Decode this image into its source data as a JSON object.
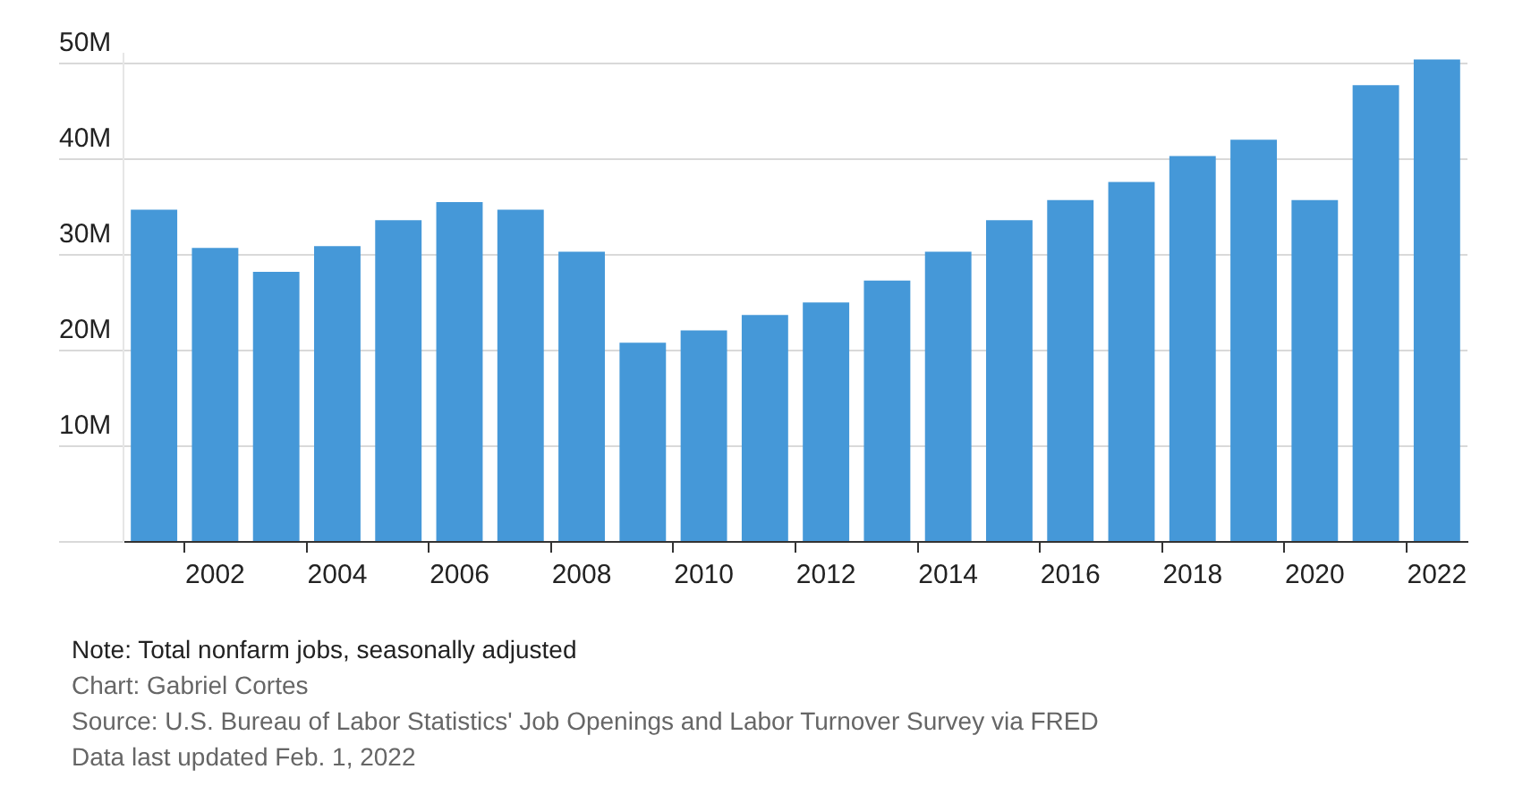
{
  "chart_data": {
    "type": "bar",
    "categories": [
      null,
      "2002",
      null,
      "2004",
      null,
      "2006",
      null,
      "2008",
      null,
      "2010",
      null,
      "2012",
      null,
      "2014",
      null,
      "2016",
      null,
      "2018",
      null,
      "2020",
      null,
      "2022"
    ],
    "values": [
      34.7,
      30.7,
      28.2,
      30.9,
      33.6,
      35.5,
      34.7,
      30.3,
      20.8,
      22.1,
      23.7,
      25.0,
      27.3,
      30.3,
      33.6,
      35.7,
      37.6,
      40.3,
      42.0,
      35.7,
      47.7,
      50.4
    ],
    "color": "#4598d8",
    "ylim": [
      0,
      51
    ],
    "yticks": [
      {
        "value": 0,
        "label": null
      },
      {
        "value": 10,
        "label": "10M"
      },
      {
        "value": 20,
        "label": "20M"
      },
      {
        "value": 30,
        "label": "30M"
      },
      {
        "value": 40,
        "label": "40M"
      },
      {
        "value": 50,
        "label": "50M"
      }
    ],
    "grid": "y",
    "annotations": [
      "Note: Total nonfarm jobs, seasonally adjusted",
      "Chart: Gabriel Cortes",
      "Source: U.S. Bureau of Labor Statistics' Job Openings and Labor Turnover Survey via FRED",
      "Data last updated Feb. 1, 2022"
    ]
  }
}
